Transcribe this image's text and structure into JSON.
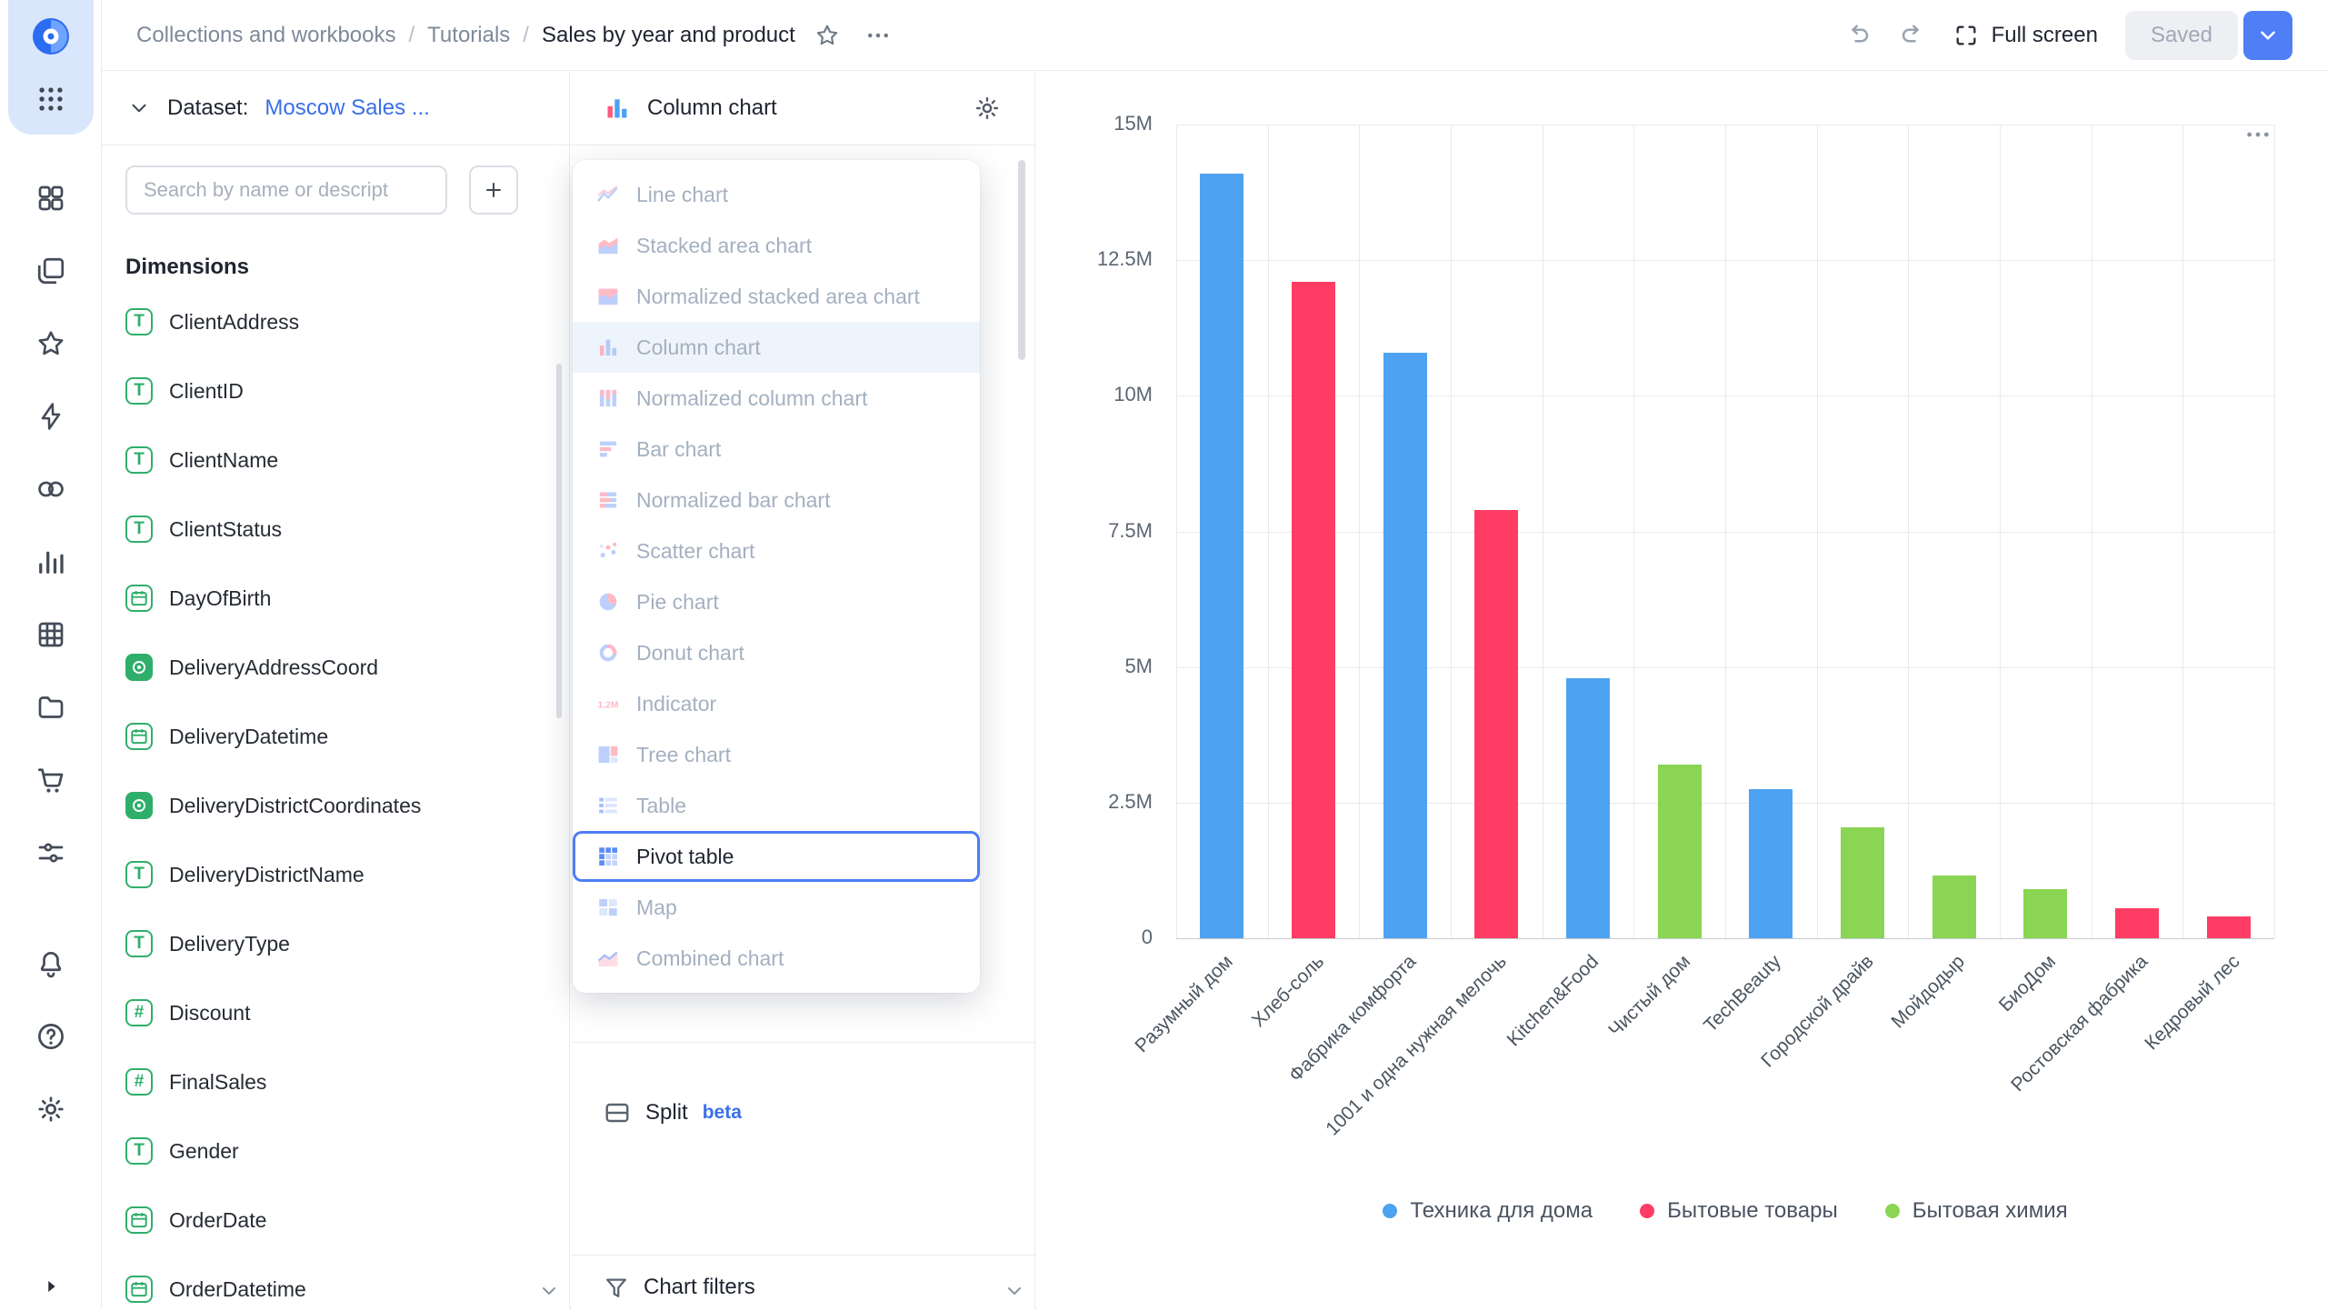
{
  "colors": {
    "accent_blue": "#4F7DF5",
    "link_blue": "#3A6FE8",
    "field_green": "#2FAE6B",
    "bar_blue": "#4DA2F1",
    "bar_red": "#FF3D64",
    "bar_green": "#8AD554"
  },
  "rail": {
    "main_icons": [
      "tiles-icon",
      "layers-icon",
      "star-icon",
      "lightning-icon",
      "rings-icon",
      "chart-bars-icon",
      "grid-table-icon",
      "folder-icon",
      "cart-icon",
      "sliders-icon"
    ],
    "bottom_icons": [
      "bell-icon",
      "help-icon",
      "gear-icon"
    ]
  },
  "topbar": {
    "breadcrumbs": [
      "Collections and workbooks",
      "Tutorials",
      "Sales by year and product"
    ],
    "full_screen_label": "Full screen",
    "saved_label": "Saved"
  },
  "dataset_panel": {
    "dataset_label": "Dataset:",
    "dataset_name": "Moscow Sales ...",
    "search_placeholder": "Search by name or descript",
    "dimensions_label": "Dimensions",
    "fields": [
      {
        "name": "ClientAddress",
        "type": "string"
      },
      {
        "name": "ClientID",
        "type": "string"
      },
      {
        "name": "ClientName",
        "type": "string"
      },
      {
        "name": "ClientStatus",
        "type": "string"
      },
      {
        "name": "DayOfBirth",
        "type": "date"
      },
      {
        "name": "DeliveryAddressCoord",
        "type": "geo"
      },
      {
        "name": "DeliveryDatetime",
        "type": "date"
      },
      {
        "name": "DeliveryDistrictCoordinates",
        "type": "geo"
      },
      {
        "name": "DeliveryDistrictName",
        "type": "string"
      },
      {
        "name": "DeliveryType",
        "type": "string"
      },
      {
        "name": "Discount",
        "type": "number"
      },
      {
        "name": "FinalSales",
        "type": "number"
      },
      {
        "name": "Gender",
        "type": "string"
      },
      {
        "name": "OrderDate",
        "type": "date"
      },
      {
        "name": "OrderDatetime",
        "type": "date"
      }
    ]
  },
  "chart_panel": {
    "title": "Column chart",
    "split_label": "Split",
    "split_badge": "beta",
    "chart_filters_label": "Chart filters"
  },
  "chart_type_menu": {
    "items": [
      {
        "label": "Line chart",
        "icon": "line-chart",
        "state": ""
      },
      {
        "label": "Stacked area chart",
        "icon": "stacked-area-chart",
        "state": ""
      },
      {
        "label": "Normalized stacked area chart",
        "icon": "normalized-stacked-area-chart",
        "state": ""
      },
      {
        "label": "Column chart",
        "icon": "column-chart",
        "state": "selected"
      },
      {
        "label": "Normalized column chart",
        "icon": "normalized-column-chart",
        "state": ""
      },
      {
        "label": "Bar chart",
        "icon": "bar-chart",
        "state": ""
      },
      {
        "label": "Normalized bar chart",
        "icon": "normalized-bar-chart",
        "state": ""
      },
      {
        "label": "Scatter chart",
        "icon": "scatter-chart",
        "state": ""
      },
      {
        "label": "Pie chart",
        "icon": "pie-chart",
        "state": ""
      },
      {
        "label": "Donut chart",
        "icon": "donut-chart",
        "state": ""
      },
      {
        "label": "Indicator",
        "icon": "indicator",
        "state": ""
      },
      {
        "label": "Tree chart",
        "icon": "tree-chart",
        "state": ""
      },
      {
        "label": "Table",
        "icon": "table",
        "state": ""
      },
      {
        "label": "Pivot table",
        "icon": "pivot-table",
        "state": "focused"
      },
      {
        "label": "Map",
        "icon": "map",
        "state": ""
      },
      {
        "label": "Combined chart",
        "icon": "combined-chart",
        "state": ""
      }
    ]
  },
  "chart_data": {
    "type": "bar",
    "title": "",
    "xlabel": "",
    "ylabel": "",
    "value_unit": "M",
    "grid": true,
    "legend_position": "bottom",
    "categories": [
      "Разумный дом",
      "Хлеб-соль",
      "Фабрика комфорта",
      "1001 и одна нужная мелочь",
      "Kitchen&Food",
      "Чистый дом",
      "TechBeauty",
      "Городской драйв",
      "Мойдодыр",
      "БиоДом",
      "Ростовская фабрика",
      "Кедровый лес"
    ],
    "values": [
      14.1,
      12.1,
      10.8,
      7.9,
      4.8,
      3.2,
      2.75,
      2.05,
      1.15,
      0.9,
      0.55,
      0.4
    ],
    "bar_series": [
      0,
      1,
      0,
      1,
      0,
      2,
      0,
      2,
      2,
      2,
      1,
      1
    ],
    "series": [
      {
        "name": "Техника для дома",
        "color": "#4DA2F1"
      },
      {
        "name": "Бытовые товары",
        "color": "#FF3D64"
      },
      {
        "name": "Бытовая химия",
        "color": "#8AD554"
      }
    ],
    "ylim": [
      0,
      15
    ],
    "y_ticks": [
      {
        "value": 0,
        "label": "0"
      },
      {
        "value": 2.5,
        "label": "2.5M"
      },
      {
        "value": 5,
        "label": "5M"
      },
      {
        "value": 7.5,
        "label": "7.5M"
      },
      {
        "value": 10,
        "label": "10M"
      },
      {
        "value": 12.5,
        "label": "12.5M"
      },
      {
        "value": 15,
        "label": "15M"
      }
    ]
  }
}
